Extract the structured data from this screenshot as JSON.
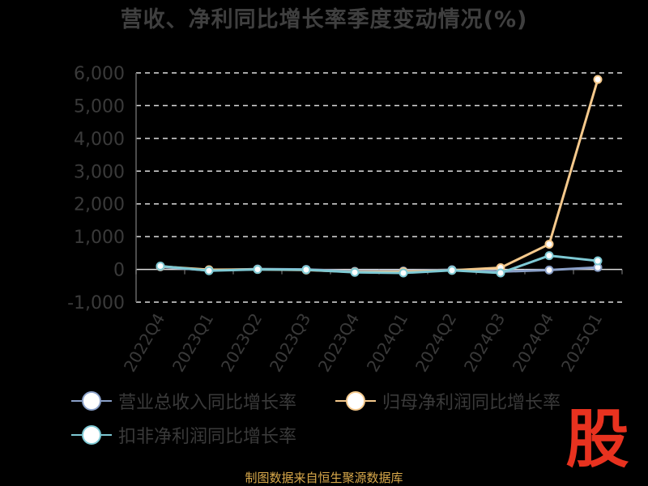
{
  "chart_data": {
    "type": "line",
    "title": "营收、净利同比增长率季度变动情况(%)",
    "categories": [
      "2022Q4",
      "2023Q1",
      "2023Q2",
      "2023Q3",
      "2023Q4",
      "2024Q1",
      "2024Q2",
      "2024Q3",
      "2024Q4",
      "2025Q1"
    ],
    "ylim": [
      -1000,
      6000
    ],
    "yticks": [
      "-1,000",
      "0",
      "1,000",
      "2,000",
      "3,000",
      "4,000",
      "5,000",
      "6,000"
    ],
    "grid": true,
    "legend_position": "bottom",
    "series": [
      {
        "name": "营业总收入同比增长率",
        "color": "#8aa0c8",
        "values": [
          80,
          -30,
          10,
          0,
          -60,
          -50,
          -10,
          -70,
          -20,
          60
        ]
      },
      {
        "name": "归母净利润同比增长率",
        "color": "#f5c98c",
        "values": [
          90,
          -10,
          0,
          -20,
          -80,
          -70,
          -30,
          50,
          770,
          5800
        ]
      },
      {
        "name": "扣非净利润同比增长率",
        "color": "#7ec9d4",
        "values": [
          100,
          -40,
          0,
          -10,
          -90,
          -110,
          -30,
          -110,
          420,
          260
        ]
      }
    ]
  },
  "source": "制图数据来自恒生聚源数据库",
  "logo_text": "股"
}
